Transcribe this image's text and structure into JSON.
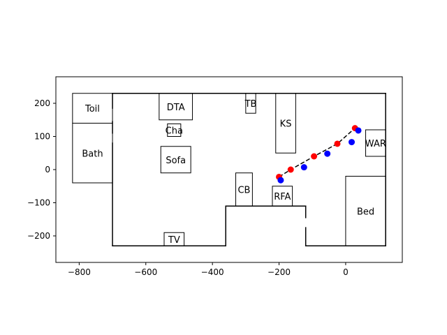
{
  "chart_data": {
    "type": "scatter",
    "title": "",
    "xlabel": "",
    "ylabel": "",
    "xlim": [
      -870,
      170
    ],
    "ylim": [
      -280,
      280
    ],
    "xticks": [
      -800,
      -600,
      -400,
      -200,
      0
    ],
    "yticks": [
      -200,
      -100,
      0,
      100,
      200
    ],
    "xtick_labels": [
      "−800",
      "−600",
      "−400",
      "−200",
      "0"
    ],
    "ytick_labels": [
      "−200",
      "−100",
      "0",
      "100",
      "200"
    ],
    "grid": false,
    "walls": [
      [
        [
          -700,
          230
        ],
        [
          120,
          230
        ]
      ],
      [
        [
          120,
          230
        ],
        [
          120,
          -230
        ]
      ],
      [
        [
          120,
          -230
        ],
        [
          -120,
          -230
        ]
      ],
      [
        [
          -120,
          -230
        ],
        [
          -120,
          -175
        ]
      ],
      [
        [
          -120,
          -145
        ],
        [
          -120,
          -110
        ]
      ],
      [
        [
          -120,
          -110
        ],
        [
          -360,
          -110
        ]
      ],
      [
        [
          -360,
          -110
        ],
        [
          -360,
          -230
        ]
      ],
      [
        [
          -360,
          -230
        ],
        [
          -700,
          -230
        ]
      ],
      [
        [
          -700,
          -230
        ],
        [
          -700,
          80
        ]
      ],
      [
        [
          -700,
          110
        ],
        [
          -700,
          145
        ]
      ],
      [
        [
          -700,
          185
        ],
        [
          -700,
          230
        ]
      ]
    ],
    "rooms": [
      {
        "label": "Toil",
        "x0": -820,
        "x1": -700,
        "y0": 140,
        "y1": 230
      },
      {
        "label": "Bath",
        "x0": -820,
        "x1": -700,
        "y0": -40,
        "y1": 140
      },
      {
        "label": "DTA",
        "x0": -560,
        "x1": -460,
        "y0": 150,
        "y1": 230
      },
      {
        "label": "Cha",
        "x0": -535,
        "x1": -495,
        "y0": 100,
        "y1": 138
      },
      {
        "label": "Sofa",
        "x0": -555,
        "x1": -465,
        "y0": -10,
        "y1": 70
      },
      {
        "label": "TB",
        "x0": -300,
        "x1": -270,
        "y0": 170,
        "y1": 230
      },
      {
        "label": "KS",
        "x0": -210,
        "x1": -150,
        "y0": 50,
        "y1": 230
      },
      {
        "label": "CB",
        "x0": -330,
        "x1": -280,
        "y0": -110,
        "y1": -10
      },
      {
        "label": "RFA",
        "x0": -220,
        "x1": -160,
        "y0": -110,
        "y1": -50
      },
      {
        "label": "TV",
        "x0": -545,
        "x1": -485,
        "y0": -230,
        "y1": -190
      },
      {
        "label": "Bed",
        "x0": 0,
        "x1": 120,
        "y0": -230,
        "y1": -20
      },
      {
        "label": "WAR",
        "x0": 60,
        "x1": 120,
        "y0": 40,
        "y1": 120
      }
    ],
    "path": {
      "style": "dashed",
      "color": "#000000",
      "x": [
        -200,
        -165,
        -95,
        -25,
        28,
        38
      ],
      "y": [
        -22,
        0,
        40,
        78,
        125,
        118
      ]
    },
    "series": [
      {
        "color": "#ff0000",
        "x": [
          -200,
          -165,
          -95,
          -25,
          28
        ],
        "y": [
          -22,
          0,
          40,
          78,
          125
        ]
      },
      {
        "color": "#0000ff",
        "x": [
          -195,
          -125,
          -55,
          18,
          38
        ],
        "y": [
          -32,
          7,
          48,
          83,
          118
        ]
      }
    ]
  }
}
